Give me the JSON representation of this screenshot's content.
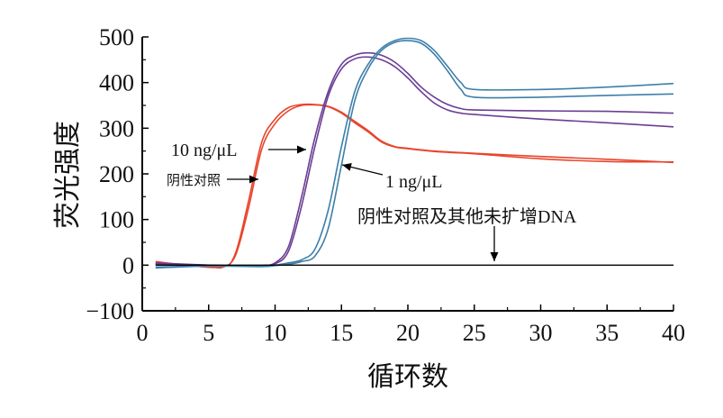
{
  "chart_data": {
    "type": "line",
    "xlabel": "循环数",
    "ylabel": "荧光强度",
    "xlim": [
      0,
      40
    ],
    "ylim": [
      -100,
      500
    ],
    "x_ticks": [
      "0",
      "5",
      "10",
      "15",
      "20",
      "25",
      "30",
      "35",
      "40"
    ],
    "y_ticks": [
      "500",
      "400",
      "300",
      "200",
      "100",
      "0",
      "−100"
    ],
    "series": [
      {
        "color": "#e8452c",
        "points": [
          [
            1,
            8
          ],
          [
            3,
            1
          ],
          [
            6,
            -4
          ],
          [
            7,
            25
          ],
          [
            8,
            140
          ],
          [
            9,
            270
          ],
          [
            10,
            320
          ],
          [
            11,
            345
          ],
          [
            12,
            352
          ],
          [
            13,
            352
          ],
          [
            14,
            348
          ],
          [
            15,
            335
          ],
          [
            16,
            315
          ],
          [
            17,
            295
          ],
          [
            18,
            272
          ],
          [
            19,
            260
          ],
          [
            20,
            256
          ],
          [
            22,
            250
          ],
          [
            25,
            245
          ],
          [
            30,
            238
          ],
          [
            35,
            232
          ],
          [
            40,
            225
          ]
        ]
      },
      {
        "color": "#e8452c",
        "points": [
          [
            1,
            2
          ],
          [
            3,
            0
          ],
          [
            5,
            -2
          ],
          [
            6,
            -5
          ],
          [
            7,
            20
          ],
          [
            8,
            125
          ],
          [
            9,
            255
          ],
          [
            10,
            310
          ],
          [
            11,
            338
          ],
          [
            12,
            350
          ],
          [
            13,
            351
          ],
          [
            14,
            347
          ],
          [
            15,
            333
          ],
          [
            16,
            312
          ],
          [
            17,
            292
          ],
          [
            18,
            270
          ],
          [
            19,
            259
          ],
          [
            20,
            255
          ],
          [
            22,
            249
          ],
          [
            25,
            244
          ],
          [
            30,
            233
          ],
          [
            35,
            227
          ],
          [
            40,
            226
          ]
        ]
      },
      {
        "color": "#6a3d93",
        "points": [
          [
            1,
            5
          ],
          [
            5,
            0
          ],
          [
            8,
            -2
          ],
          [
            9,
            -1
          ],
          [
            10,
            5
          ],
          [
            11,
            40
          ],
          [
            12,
            150
          ],
          [
            13,
            280
          ],
          [
            14,
            380
          ],
          [
            15,
            440
          ],
          [
            16,
            460
          ],
          [
            17,
            465
          ],
          [
            18,
            460
          ],
          [
            19,
            445
          ],
          [
            20,
            420
          ],
          [
            21,
            390
          ],
          [
            22,
            368
          ],
          [
            23,
            352
          ],
          [
            24,
            343
          ],
          [
            25,
            340
          ],
          [
            30,
            338
          ],
          [
            35,
            337
          ],
          [
            40,
            333
          ]
        ]
      },
      {
        "color": "#6a3d93",
        "points": [
          [
            1,
            3
          ],
          [
            5,
            0
          ],
          [
            8,
            -2
          ],
          [
            9,
            -1
          ],
          [
            10,
            3
          ],
          [
            11,
            30
          ],
          [
            12,
            130
          ],
          [
            13,
            260
          ],
          [
            14,
            370
          ],
          [
            15,
            430
          ],
          [
            16,
            452
          ],
          [
            17,
            456
          ],
          [
            18,
            450
          ],
          [
            19,
            435
          ],
          [
            20,
            410
          ],
          [
            21,
            380
          ],
          [
            22,
            355
          ],
          [
            23,
            340
          ],
          [
            24,
            333
          ],
          [
            25,
            330
          ],
          [
            30,
            320
          ],
          [
            35,
            312
          ],
          [
            40,
            303
          ]
        ]
      },
      {
        "color": "#3d7fa8",
        "points": [
          [
            1,
            -6
          ],
          [
            5,
            -2
          ],
          [
            9,
            -2
          ],
          [
            10,
            0
          ],
          [
            11,
            5
          ],
          [
            12,
            12
          ],
          [
            13,
            35
          ],
          [
            14,
            120
          ],
          [
            15,
            260
          ],
          [
            16,
            380
          ],
          [
            17,
            440
          ],
          [
            18,
            475
          ],
          [
            19,
            492
          ],
          [
            20,
            497
          ],
          [
            21,
            492
          ],
          [
            22,
            470
          ],
          [
            23,
            435
          ],
          [
            24,
            400
          ],
          [
            25,
            385
          ],
          [
            30,
            385
          ],
          [
            35,
            390
          ],
          [
            40,
            398
          ]
        ]
      },
      {
        "color": "#3d7fa8",
        "points": [
          [
            1,
            -4
          ],
          [
            5,
            -2
          ],
          [
            9,
            -3
          ],
          [
            10,
            -1
          ],
          [
            11,
            2
          ],
          [
            12,
            8
          ],
          [
            13,
            20
          ],
          [
            14,
            80
          ],
          [
            15,
            220
          ],
          [
            16,
            360
          ],
          [
            17,
            430
          ],
          [
            18,
            470
          ],
          [
            19,
            488
          ],
          [
            20,
            492
          ],
          [
            21,
            486
          ],
          [
            22,
            462
          ],
          [
            23,
            425
          ],
          [
            24,
            385
          ],
          [
            25,
            368
          ],
          [
            30,
            368
          ],
          [
            35,
            372
          ],
          [
            40,
            375
          ]
        ]
      },
      {
        "color": "#000000",
        "points": [
          [
            1,
            0
          ],
          [
            40,
            0
          ]
        ]
      }
    ],
    "annotations": [
      {
        "id": "a10",
        "text": "10 ng/μL"
      },
      {
        "id": "a1",
        "text": "1 ng/μL"
      },
      {
        "id": "aneg",
        "text": "阴性对照"
      },
      {
        "id": "aother",
        "text": "阴性对照及其他未扩增DNA"
      }
    ]
  }
}
